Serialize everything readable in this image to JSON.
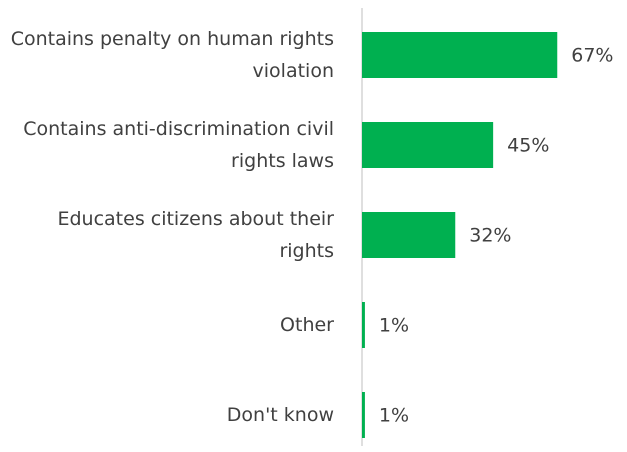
{
  "chart_data": {
    "type": "hbar",
    "categories": [
      "Contains penalty on human rights violation",
      "Contains anti-discrimination civil rights laws",
      "Educates citizens about their rights",
      "Other",
      "Don't know"
    ],
    "values": [
      67,
      45,
      32,
      1,
      1
    ],
    "value_labels": [
      "67%",
      "45%",
      "32%",
      "1%",
      "1%"
    ],
    "color": "#00b050",
    "xlim": [
      0,
      70
    ]
  }
}
